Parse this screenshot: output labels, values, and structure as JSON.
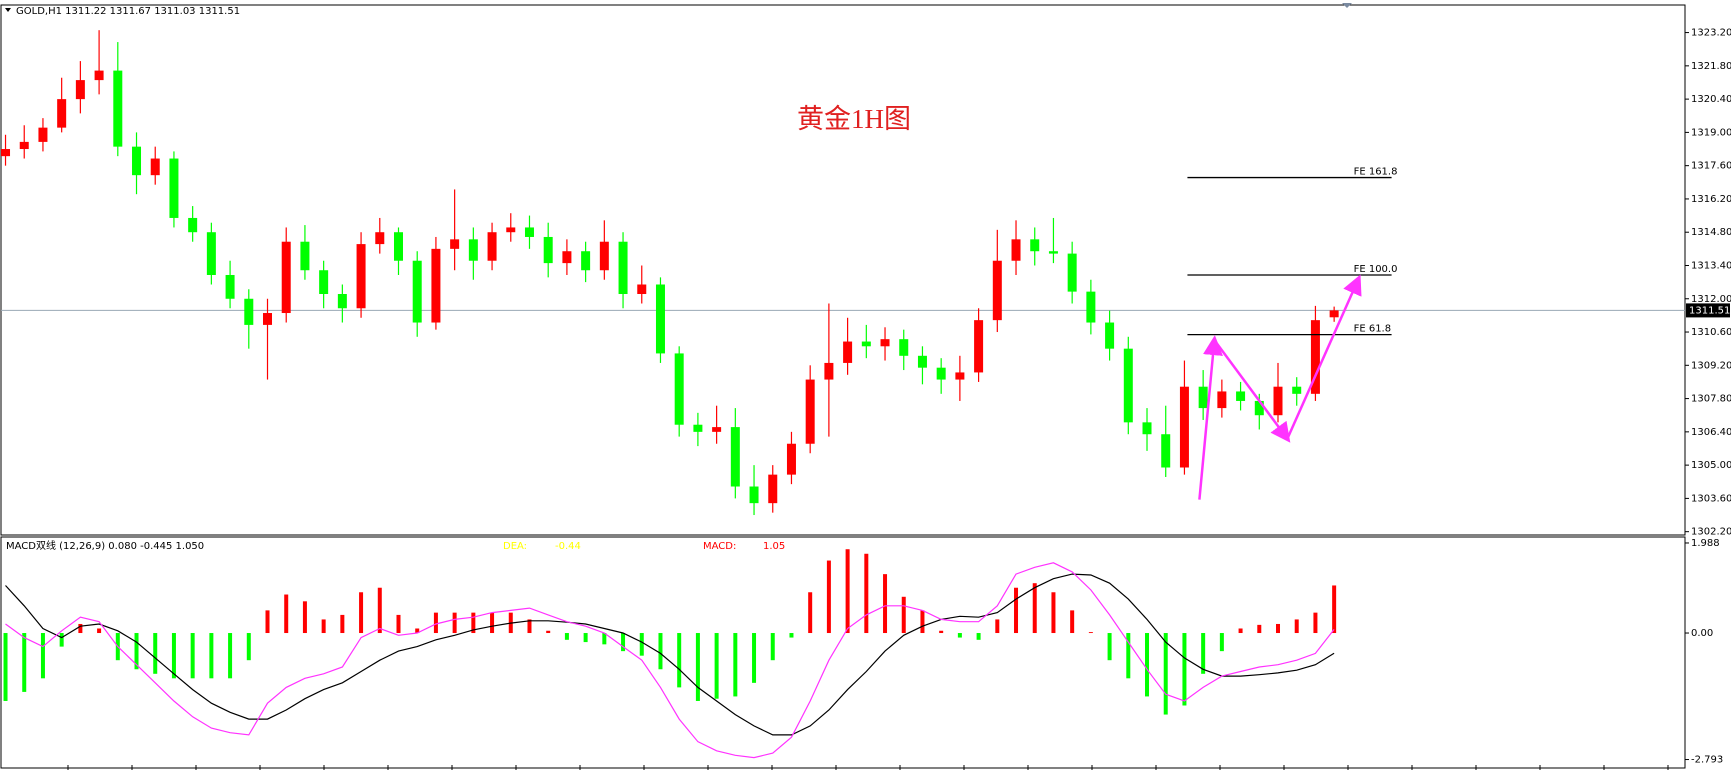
{
  "chart_data": [
    {
      "type": "candlestick",
      "header": "GOLD,H1  1311.22 1311.67 1311.03 1311.51",
      "title": "黄金1H图",
      "up_color": "#ff0000",
      "down_color": "#00ff00",
      "ohlc": [
        [
          1318.0,
          1318.9,
          1317.6,
          1318.3
        ],
        [
          1318.3,
          1319.3,
          1317.9,
          1318.6
        ],
        [
          1318.6,
          1319.6,
          1318.2,
          1319.2
        ],
        [
          1319.2,
          1321.3,
          1319.0,
          1320.4
        ],
        [
          1320.4,
          1322.0,
          1319.8,
          1321.2
        ],
        [
          1321.2,
          1323.3,
          1320.6,
          1321.6
        ],
        [
          1321.6,
          1322.8,
          1318.0,
          1318.4
        ],
        [
          1318.4,
          1319.0,
          1316.4,
          1317.2
        ],
        [
          1317.2,
          1318.4,
          1316.8,
          1317.9
        ],
        [
          1317.9,
          1318.2,
          1315.0,
          1315.4
        ],
        [
          1315.4,
          1315.9,
          1314.4,
          1314.8
        ],
        [
          1314.8,
          1315.2,
          1312.6,
          1313.0
        ],
        [
          1313.0,
          1313.6,
          1311.6,
          1312.0
        ],
        [
          1312.0,
          1312.4,
          1309.9,
          1310.9
        ],
        [
          1310.9,
          1312.0,
          1308.6,
          1311.4
        ],
        [
          1311.4,
          1315.0,
          1311.0,
          1314.4
        ],
        [
          1314.4,
          1315.1,
          1312.8,
          1313.2
        ],
        [
          1313.2,
          1313.6,
          1311.6,
          1312.2
        ],
        [
          1312.2,
          1312.6,
          1311.0,
          1311.6
        ],
        [
          1311.6,
          1314.8,
          1311.2,
          1314.3
        ],
        [
          1314.3,
          1315.4,
          1313.9,
          1314.8
        ],
        [
          1314.8,
          1315.0,
          1313.0,
          1313.6
        ],
        [
          1313.6,
          1314.0,
          1310.4,
          1311.0
        ],
        [
          1311.0,
          1314.6,
          1310.7,
          1314.1
        ],
        [
          1314.1,
          1316.6,
          1313.2,
          1314.5
        ],
        [
          1314.5,
          1315.0,
          1312.8,
          1313.6
        ],
        [
          1313.6,
          1315.2,
          1313.2,
          1314.8
        ],
        [
          1314.8,
          1315.6,
          1314.4,
          1315.0
        ],
        [
          1315.0,
          1315.5,
          1314.1,
          1314.6
        ],
        [
          1314.6,
          1315.2,
          1312.9,
          1313.5
        ],
        [
          1313.5,
          1314.5,
          1313.0,
          1314.0
        ],
        [
          1314.0,
          1314.4,
          1312.7,
          1313.2
        ],
        [
          1313.2,
          1315.3,
          1312.8,
          1314.4
        ],
        [
          1314.4,
          1314.8,
          1311.6,
          1312.2
        ],
        [
          1312.2,
          1313.4,
          1311.8,
          1312.6
        ],
        [
          1312.6,
          1312.9,
          1309.3,
          1309.7
        ],
        [
          1309.7,
          1310.0,
          1306.2,
          1306.7
        ],
        [
          1306.7,
          1307.2,
          1305.8,
          1306.4
        ],
        [
          1306.4,
          1307.5,
          1305.9,
          1306.6
        ],
        [
          1306.6,
          1307.4,
          1303.6,
          1304.1
        ],
        [
          1304.1,
          1305.0,
          1302.9,
          1303.4
        ],
        [
          1303.4,
          1305.0,
          1303.0,
          1304.6
        ],
        [
          1304.6,
          1306.4,
          1304.2,
          1305.9
        ],
        [
          1305.9,
          1309.2,
          1305.5,
          1308.6
        ],
        [
          1308.6,
          1311.8,
          1306.2,
          1309.3
        ],
        [
          1309.3,
          1311.2,
          1308.8,
          1310.2
        ],
        [
          1310.2,
          1310.9,
          1309.5,
          1310.0
        ],
        [
          1310.0,
          1310.8,
          1309.4,
          1310.3
        ],
        [
          1310.3,
          1310.7,
          1309.0,
          1309.6
        ],
        [
          1309.6,
          1310.0,
          1308.4,
          1309.1
        ],
        [
          1309.1,
          1309.5,
          1308.0,
          1308.6
        ],
        [
          1308.6,
          1309.6,
          1307.7,
          1308.9
        ],
        [
          1308.9,
          1311.6,
          1308.5,
          1311.1
        ],
        [
          1311.1,
          1314.9,
          1310.6,
          1313.6
        ],
        [
          1313.6,
          1315.3,
          1313.0,
          1314.5
        ],
        [
          1314.5,
          1315.0,
          1313.4,
          1314.0
        ],
        [
          1314.0,
          1315.4,
          1313.5,
          1313.9
        ],
        [
          1313.9,
          1314.4,
          1311.8,
          1312.3
        ],
        [
          1312.3,
          1312.8,
          1310.5,
          1311.0
        ],
        [
          1311.0,
          1311.5,
          1309.4,
          1309.9
        ],
        [
          1309.9,
          1310.4,
          1306.3,
          1306.8
        ],
        [
          1306.8,
          1307.4,
          1305.6,
          1306.3
        ],
        [
          1306.3,
          1307.5,
          1304.5,
          1304.9
        ],
        [
          1304.9,
          1309.4,
          1304.6,
          1308.3
        ],
        [
          1308.3,
          1309.0,
          1306.9,
          1307.4
        ],
        [
          1307.4,
          1308.6,
          1307.0,
          1308.1
        ],
        [
          1308.1,
          1308.5,
          1307.3,
          1307.7
        ],
        [
          1307.7,
          1308.0,
          1306.5,
          1307.1
        ],
        [
          1307.1,
          1309.3,
          1306.8,
          1308.3
        ],
        [
          1308.3,
          1308.7,
          1307.5,
          1308.0
        ],
        [
          1308.0,
          1311.7,
          1307.7,
          1311.1
        ],
        [
          1311.22,
          1311.67,
          1311.03,
          1311.51
        ]
      ],
      "ylim": [
        1302.06,
        1324.36
      ],
      "yticks": [
        {
          "value": 1323.2,
          "label": "1323.20"
        },
        {
          "value": 1321.8,
          "label": "1321.80"
        },
        {
          "value": 1320.4,
          "label": "1320.40"
        },
        {
          "value": 1319.0,
          "label": "1319.00"
        },
        {
          "value": 1317.6,
          "label": "1317.60"
        },
        {
          "value": 1316.2,
          "label": "1316.20"
        },
        {
          "value": 1314.8,
          "label": "1314.80"
        },
        {
          "value": 1313.4,
          "label": "1313.40"
        },
        {
          "value": 1312.0,
          "label": "1312.00"
        },
        {
          "value": 1310.6,
          "label": "1310.60"
        },
        {
          "value": 1309.2,
          "label": "1309.20"
        },
        {
          "value": 1307.8,
          "label": "1307.80"
        },
        {
          "value": 1306.4,
          "label": "1306.40"
        },
        {
          "value": 1305.0,
          "label": "1305.00"
        },
        {
          "value": 1303.6,
          "label": "1303.60"
        },
        {
          "value": 1302.2,
          "label": "1302.20"
        }
      ],
      "last": {
        "value": 1311.51,
        "label": "1311.51"
      },
      "levels": [
        {
          "value": 1317.1,
          "label": "FE 161.8"
        },
        {
          "value": 1313.0,
          "label": "FE 100.0"
        },
        {
          "value": 1310.49,
          "label": "FE 61.8"
        }
      ],
      "wave": {
        "color": "#ff33ff",
        "values": [
          1303.55,
          1310.26,
          1306.11,
          1312.83
        ]
      }
    },
    {
      "type": "macd",
      "label": "MACD双线 (12,26,9) 0.080 -0.445 1.050",
      "dea_label": "DEA:",
      "dea_value": "-0.44",
      "macd_label": "MACD:",
      "macd_value": "1.05",
      "dea_color": "#ffff00",
      "macd_label_color": "#ff0000",
      "ylim": [
        -2.98,
        2.12
      ],
      "yticks": [
        1.988,
        {
          "value": 0,
          "label": "0.00"
        },
        -2.793
      ],
      "histogram": {
        "up_color": "#ff0000",
        "down_color": "#00ff00",
        "values": [
          -1.5,
          -1.3,
          -1.0,
          -0.3,
          0.2,
          0.1,
          -0.6,
          -0.8,
          -0.9,
          -1.0,
          -1.0,
          -1.0,
          -1.0,
          -0.6,
          0.5,
          0.85,
          0.7,
          0.3,
          0.4,
          0.9,
          1.0,
          0.4,
          0.1,
          0.45,
          0.45,
          0.45,
          0.45,
          0.45,
          0.3,
          0.05,
          -0.15,
          -0.2,
          -0.25,
          -0.4,
          -0.5,
          -0.8,
          -1.2,
          -1.5,
          -1.45,
          -1.4,
          -1.1,
          -0.6,
          -0.1,
          0.9,
          1.6,
          1.85,
          1.75,
          1.3,
          0.8,
          0.5,
          0.05,
          -0.1,
          -0.15,
          0.3,
          1.0,
          1.1,
          0.9,
          0.5,
          0.02,
          -0.6,
          -1.0,
          -1.4,
          -1.8,
          -1.6,
          -0.9,
          -0.4,
          0.1,
          0.18,
          0.2,
          0.3,
          0.45,
          1.05
        ]
      },
      "signal": {
        "color": "#000000",
        "values": [
          1.05,
          0.6,
          0.1,
          -0.1,
          0.15,
          0.2,
          0.05,
          -0.2,
          -0.55,
          -0.9,
          -1.25,
          -1.55,
          -1.75,
          -1.9,
          -1.9,
          -1.7,
          -1.45,
          -1.25,
          -1.1,
          -0.85,
          -0.6,
          -0.4,
          -0.3,
          -0.15,
          -0.05,
          0.07,
          0.15,
          0.22,
          0.27,
          0.27,
          0.24,
          0.2,
          0.1,
          0.0,
          -0.2,
          -0.45,
          -0.8,
          -1.2,
          -1.5,
          -1.8,
          -2.05,
          -2.25,
          -2.25,
          -2.05,
          -1.7,
          -1.25,
          -0.85,
          -0.4,
          -0.05,
          0.15,
          0.3,
          0.37,
          0.35,
          0.45,
          0.75,
          1.0,
          1.2,
          1.3,
          1.28,
          1.1,
          0.75,
          0.3,
          -0.2,
          -0.55,
          -0.8,
          -0.95,
          -0.95,
          -0.92,
          -0.88,
          -0.82,
          -0.7,
          -0.445
        ]
      },
      "macd": {
        "color": "#ff33ff",
        "values": [
          0.2,
          -0.1,
          -0.3,
          0.05,
          0.35,
          0.25,
          -0.3,
          -0.7,
          -1.1,
          -1.5,
          -1.85,
          -2.1,
          -2.2,
          -2.25,
          -1.55,
          -1.2,
          -1.0,
          -0.9,
          -0.75,
          -0.1,
          0.1,
          -0.05,
          0.0,
          0.2,
          0.3,
          0.35,
          0.45,
          0.5,
          0.55,
          0.4,
          0.25,
          0.15,
          0.0,
          -0.3,
          -0.6,
          -1.2,
          -1.9,
          -2.4,
          -2.6,
          -2.7,
          -2.75,
          -2.65,
          -2.3,
          -1.5,
          -0.6,
          0.1,
          0.4,
          0.6,
          0.6,
          0.5,
          0.3,
          0.25,
          0.25,
          0.6,
          1.3,
          1.45,
          1.55,
          1.35,
          0.95,
          0.4,
          -0.2,
          -0.8,
          -1.35,
          -1.5,
          -1.2,
          -0.95,
          -0.85,
          -0.75,
          -0.7,
          -0.6,
          -0.45,
          0.08
        ]
      }
    }
  ]
}
